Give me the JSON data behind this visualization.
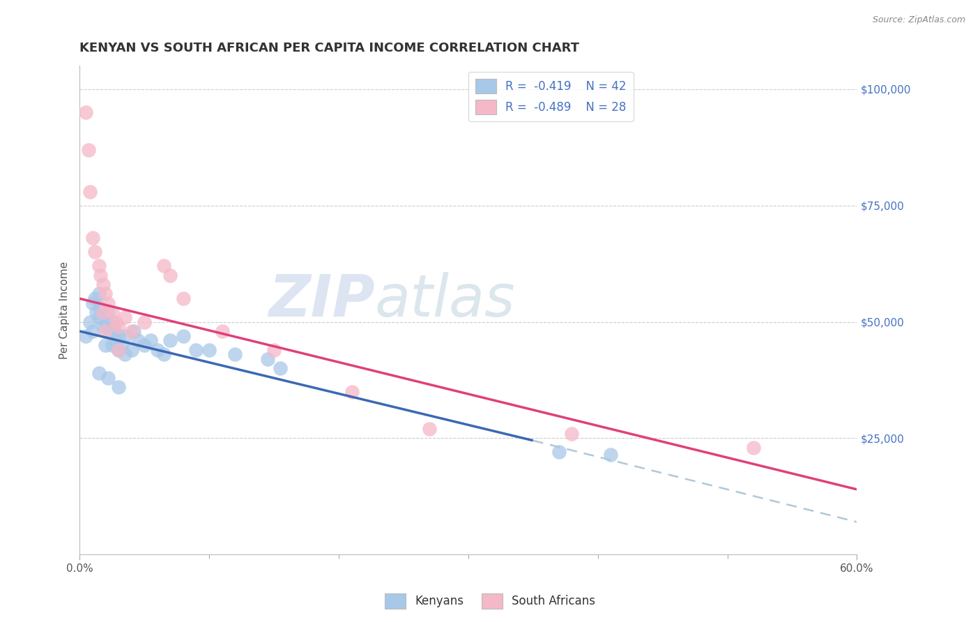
{
  "title": "KENYAN VS SOUTH AFRICAN PER CAPITA INCOME CORRELATION CHART",
  "source_text": "Source: ZipAtlas.com",
  "ylabel": "Per Capita Income",
  "xlim": [
    0.0,
    0.6
  ],
  "ylim": [
    0,
    105000
  ],
  "xtick_values": [
    0.0,
    0.6
  ],
  "xtick_labels": [
    "0.0%",
    "60.0%"
  ],
  "ytick_values": [
    25000,
    50000,
    75000,
    100000
  ],
  "ytick_labels": [
    "$25,000",
    "$50,000",
    "$75,000",
    "$100,000"
  ],
  "kenya_color": "#a8c8e8",
  "sa_color": "#f5b8c8",
  "kenya_line_color": "#3a68b4",
  "sa_line_color": "#e0407a",
  "dash_line_color": "#b0c8d8",
  "legend_label1": "Kenyans",
  "legend_label2": "South Africans",
  "watermark_zip": "ZIP",
  "watermark_atlas": "atlas",
  "title_color": "#333333",
  "source_color": "#888888",
  "tick_color_y": "#4472c4",
  "tick_color_x": "#555555",
  "title_fontsize": 13,
  "kenya_line_x0": 0.0,
  "kenya_line_y0": 48000,
  "kenya_line_x1": 0.35,
  "kenya_line_y1": 24500,
  "dash_line_x0": 0.35,
  "dash_line_y0": 24500,
  "dash_line_x1": 0.6,
  "dash_line_y1": 7000,
  "sa_line_x0": 0.0,
  "sa_line_y0": 55000,
  "sa_line_x1": 0.6,
  "sa_line_y1": 14000,
  "kenya_x": [
    0.005,
    0.008,
    0.01,
    0.01,
    0.012,
    0.013,
    0.015,
    0.015,
    0.016,
    0.018,
    0.02,
    0.02,
    0.022,
    0.023,
    0.025,
    0.025,
    0.027,
    0.028,
    0.03,
    0.03,
    0.032,
    0.035,
    0.035,
    0.04,
    0.042,
    0.045,
    0.05,
    0.055,
    0.06,
    0.065,
    0.07,
    0.08,
    0.09,
    0.1,
    0.12,
    0.145,
    0.155,
    0.015,
    0.022,
    0.03,
    0.37,
    0.41
  ],
  "kenya_y": [
    47000,
    50000,
    54000,
    48000,
    55000,
    52000,
    56000,
    51000,
    53000,
    49000,
    50000,
    45000,
    52000,
    48000,
    50000,
    45000,
    48000,
    46000,
    47000,
    44000,
    45000,
    43000,
    47000,
    44000,
    48000,
    46000,
    45000,
    46000,
    44000,
    43000,
    46000,
    47000,
    44000,
    44000,
    43000,
    42000,
    40000,
    39000,
    38000,
    36000,
    22000,
    21500
  ],
  "sa_x": [
    0.005,
    0.007,
    0.008,
    0.01,
    0.012,
    0.015,
    0.016,
    0.018,
    0.02,
    0.022,
    0.025,
    0.028,
    0.03,
    0.035,
    0.04,
    0.05,
    0.065,
    0.08,
    0.11,
    0.15,
    0.21,
    0.27,
    0.38,
    0.52,
    0.018,
    0.02,
    0.03,
    0.07
  ],
  "sa_y": [
    95000,
    87000,
    78000,
    68000,
    65000,
    62000,
    60000,
    58000,
    56000,
    54000,
    52000,
    50000,
    49000,
    51000,
    48000,
    50000,
    62000,
    55000,
    48000,
    44000,
    35000,
    27000,
    26000,
    23000,
    52000,
    48000,
    44000,
    60000
  ]
}
